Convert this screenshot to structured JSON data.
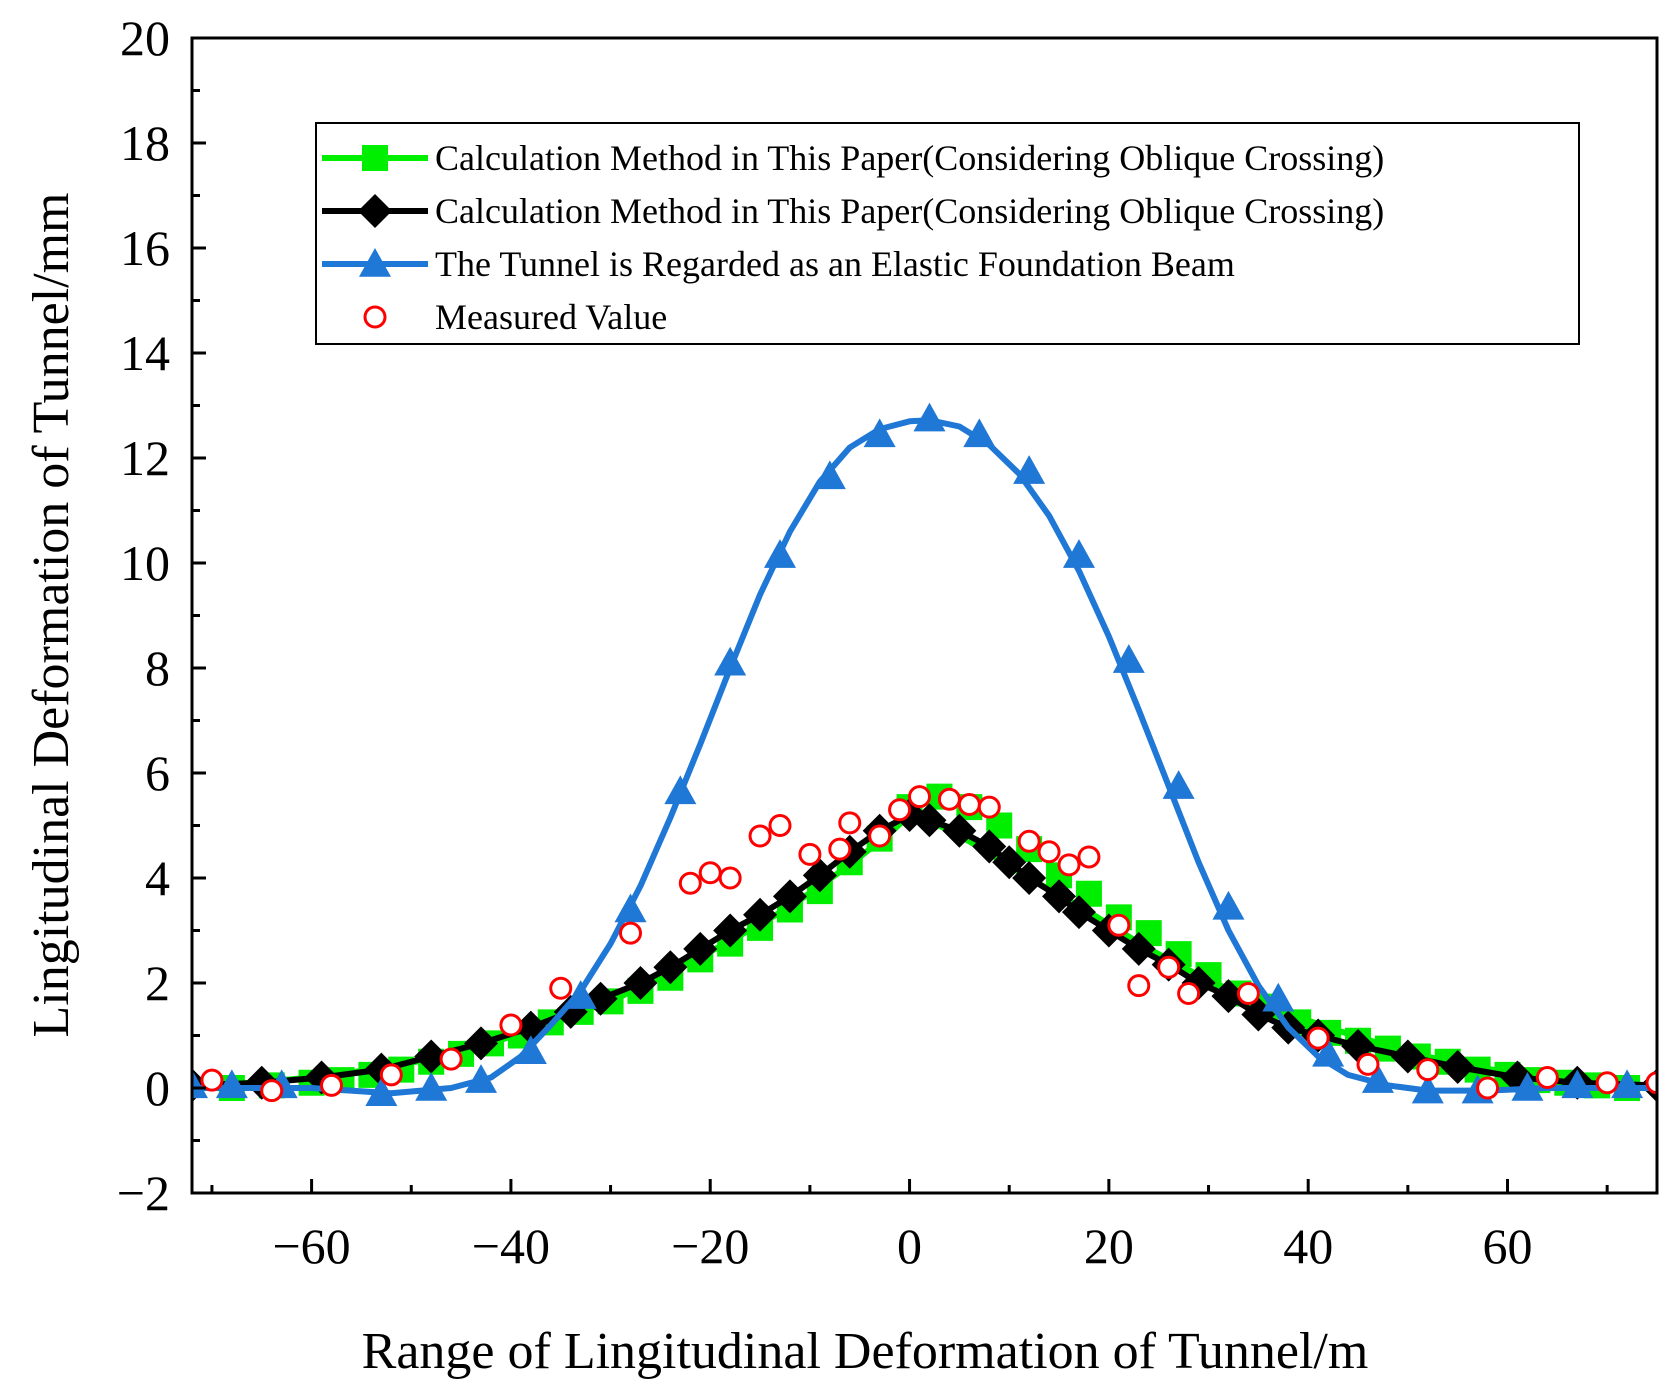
{
  "chart_data": {
    "type": "line",
    "title": "",
    "xlabel": "Range of Lingitudinal Deformation of Tunnel/m",
    "ylabel": "Lingitudinal Deformation of Tunnel/mm",
    "xlim": [
      -72,
      75
    ],
    "ylim": [
      -2,
      20
    ],
    "xticks": [
      -60,
      -40,
      -20,
      0,
      20,
      40,
      60
    ],
    "xtick_labels": [
      "−60",
      "−40",
      "−20",
      "0",
      "20",
      "40",
      "60"
    ],
    "yticks": [
      -2,
      0,
      2,
      4,
      6,
      8,
      10,
      12,
      14,
      16,
      18,
      20
    ],
    "ytick_labels": [
      "−2",
      "0",
      "2",
      "4",
      "6",
      "8",
      "10",
      "12",
      "14",
      "16",
      "18",
      "20"
    ],
    "legend_position": "top-right",
    "series": [
      {
        "name": "Calculation Method in This Paper(Considering Oblique Crossing)",
        "color": "#00ee00",
        "marker": "square",
        "points": [
          [
            -68,
            0.0
          ],
          [
            -64,
            0.05
          ],
          [
            -60,
            0.1
          ],
          [
            -57,
            0.15
          ],
          [
            -54,
            0.25
          ],
          [
            -51,
            0.35
          ],
          [
            -48,
            0.5
          ],
          [
            -45,
            0.65
          ],
          [
            -42,
            0.85
          ],
          [
            -39,
            1.0
          ],
          [
            -36,
            1.25
          ],
          [
            -33,
            1.45
          ],
          [
            -30,
            1.65
          ],
          [
            -27,
            1.85
          ],
          [
            -24,
            2.1
          ],
          [
            -21,
            2.45
          ],
          [
            -18,
            2.75
          ],
          [
            -15,
            3.05
          ],
          [
            -12,
            3.4
          ],
          [
            -9,
            3.75
          ],
          [
            -6,
            4.3
          ],
          [
            -3,
            4.75
          ],
          [
            0,
            5.35
          ],
          [
            3,
            5.55
          ],
          [
            6,
            5.35
          ],
          [
            9,
            5.0
          ],
          [
            12,
            4.55
          ],
          [
            15,
            4.05
          ],
          [
            18,
            3.7
          ],
          [
            21,
            3.25
          ],
          [
            24,
            2.95
          ],
          [
            27,
            2.55
          ],
          [
            30,
            2.15
          ],
          [
            33,
            1.8
          ],
          [
            36,
            1.55
          ],
          [
            39,
            1.25
          ],
          [
            42,
            1.05
          ],
          [
            45,
            0.9
          ],
          [
            48,
            0.75
          ],
          [
            51,
            0.6
          ],
          [
            54,
            0.5
          ],
          [
            57,
            0.35
          ],
          [
            60,
            0.25
          ],
          [
            63,
            0.15
          ],
          [
            66,
            0.1
          ],
          [
            69,
            0.05
          ],
          [
            72,
            0.0
          ]
        ],
        "line_points": [
          [
            -72,
            0.05
          ],
          [
            -66,
            0.1
          ],
          [
            -60,
            0.2
          ],
          [
            -54,
            0.35
          ],
          [
            -48,
            0.55
          ],
          [
            -42,
            0.85
          ],
          [
            -36,
            1.25
          ],
          [
            -30,
            1.65
          ],
          [
            -24,
            2.2
          ],
          [
            -18,
            2.8
          ],
          [
            -12,
            3.45
          ],
          [
            -6,
            4.25
          ],
          [
            -2,
            4.85
          ],
          [
            0,
            5.2
          ],
          [
            2,
            5.1
          ],
          [
            6,
            4.7
          ],
          [
            12,
            4.0
          ],
          [
            18,
            3.35
          ],
          [
            24,
            2.65
          ],
          [
            30,
            2.05
          ],
          [
            36,
            1.55
          ],
          [
            42,
            1.15
          ],
          [
            48,
            0.8
          ],
          [
            54,
            0.5
          ],
          [
            60,
            0.3
          ],
          [
            66,
            0.15
          ],
          [
            75,
            0.0
          ]
        ]
      },
      {
        "name": "Calculation Method in This Paper(Considering Oblique Crossing)",
        "color": "#000000",
        "marker": "diamond",
        "points": [
          [
            -72,
            0.05
          ],
          [
            -65,
            0.1
          ],
          [
            -59,
            0.2
          ],
          [
            -53,
            0.35
          ],
          [
            -48,
            0.6
          ],
          [
            -43,
            0.85
          ],
          [
            -38,
            1.15
          ],
          [
            -34,
            1.45
          ],
          [
            -31,
            1.7
          ],
          [
            -27,
            2.0
          ],
          [
            -24,
            2.3
          ],
          [
            -21,
            2.65
          ],
          [
            -18,
            3.0
          ],
          [
            -15,
            3.3
          ],
          [
            -12,
            3.65
          ],
          [
            -9,
            4.05
          ],
          [
            -6,
            4.5
          ],
          [
            -3,
            4.9
          ],
          [
            0,
            5.2
          ],
          [
            2,
            5.1
          ],
          [
            5,
            4.9
          ],
          [
            8,
            4.6
          ],
          [
            10,
            4.3
          ],
          [
            12,
            4.0
          ],
          [
            15,
            3.65
          ],
          [
            17,
            3.35
          ],
          [
            20,
            3.0
          ],
          [
            23,
            2.65
          ],
          [
            26,
            2.35
          ],
          [
            29,
            2.0
          ],
          [
            32,
            1.75
          ],
          [
            35,
            1.4
          ],
          [
            38,
            1.15
          ],
          [
            41,
            1.0
          ],
          [
            45,
            0.8
          ],
          [
            50,
            0.6
          ],
          [
            55,
            0.4
          ],
          [
            61,
            0.2
          ],
          [
            67,
            0.1
          ],
          [
            75,
            0.05
          ]
        ]
      },
      {
        "name": "The Tunnel is Regarded as an Elastic Foundation Beam",
        "color": "#1f77d6",
        "marker": "triangle",
        "points": [
          [
            -72,
            0.05
          ],
          [
            -68,
            0.05
          ],
          [
            -63,
            0.05
          ],
          [
            -53,
            -0.1
          ],
          [
            -48,
            0.0
          ],
          [
            -43,
            0.15
          ],
          [
            -38,
            0.7
          ],
          [
            -33,
            1.75
          ],
          [
            -28,
            3.4
          ],
          [
            -23,
            5.65
          ],
          [
            -18,
            8.1
          ],
          [
            -13,
            10.15
          ],
          [
            -8,
            11.65
          ],
          [
            -3,
            12.45
          ],
          [
            2,
            12.75
          ],
          [
            7,
            12.45
          ],
          [
            12,
            11.75
          ],
          [
            17,
            10.15
          ],
          [
            22,
            8.15
          ],
          [
            27,
            5.75
          ],
          [
            32,
            3.45
          ],
          [
            37,
            1.7
          ],
          [
            42,
            0.65
          ],
          [
            47,
            0.15
          ],
          [
            52,
            -0.05
          ],
          [
            57,
            -0.05
          ],
          [
            62,
            0.0
          ],
          [
            67,
            0.05
          ],
          [
            72,
            0.05
          ]
        ],
        "line_points": [
          [
            -72,
            0.0
          ],
          [
            -60,
            0.0
          ],
          [
            -52,
            -0.1
          ],
          [
            -46,
            0.0
          ],
          [
            -42,
            0.2
          ],
          [
            -39,
            0.6
          ],
          [
            -36,
            1.2
          ],
          [
            -33,
            1.85
          ],
          [
            -30,
            2.75
          ],
          [
            -27,
            3.85
          ],
          [
            -24,
            5.15
          ],
          [
            -21,
            6.55
          ],
          [
            -18,
            8.0
          ],
          [
            -15,
            9.4
          ],
          [
            -12,
            10.6
          ],
          [
            -9,
            11.55
          ],
          [
            -6,
            12.2
          ],
          [
            -3,
            12.55
          ],
          [
            0,
            12.7
          ],
          [
            2,
            12.72
          ],
          [
            5,
            12.6
          ],
          [
            8,
            12.25
          ],
          [
            11,
            11.7
          ],
          [
            14,
            10.9
          ],
          [
            17,
            9.85
          ],
          [
            20,
            8.6
          ],
          [
            23,
            7.2
          ],
          [
            26,
            5.75
          ],
          [
            29,
            4.3
          ],
          [
            32,
            3.0
          ],
          [
            35,
            1.95
          ],
          [
            38,
            1.15
          ],
          [
            41,
            0.6
          ],
          [
            44,
            0.25
          ],
          [
            48,
            0.05
          ],
          [
            52,
            -0.05
          ],
          [
            58,
            -0.05
          ],
          [
            64,
            0.0
          ],
          [
            75,
            0.0
          ]
        ]
      },
      {
        "name": "Measured Value",
        "color": "#ff0000",
        "marker": "circle-open",
        "points": [
          [
            -70,
            0.15
          ],
          [
            -64,
            -0.05
          ],
          [
            -58,
            0.05
          ],
          [
            -52,
            0.25
          ],
          [
            -46,
            0.55
          ],
          [
            -40,
            1.2
          ],
          [
            -35,
            1.9
          ],
          [
            -28,
            2.95
          ],
          [
            -22,
            3.9
          ],
          [
            -20,
            4.1
          ],
          [
            -18,
            4.0
          ],
          [
            -15,
            4.8
          ],
          [
            -13,
            5.0
          ],
          [
            -10,
            4.45
          ],
          [
            -7,
            4.55
          ],
          [
            -6,
            5.05
          ],
          [
            -3,
            4.8
          ],
          [
            -1,
            5.3
          ],
          [
            1,
            5.55
          ],
          [
            4,
            5.5
          ],
          [
            6,
            5.4
          ],
          [
            8,
            5.35
          ],
          [
            12,
            4.7
          ],
          [
            14,
            4.5
          ],
          [
            16,
            4.25
          ],
          [
            18,
            4.4
          ],
          [
            21,
            3.1
          ],
          [
            23,
            1.95
          ],
          [
            26,
            2.3
          ],
          [
            28,
            1.8
          ],
          [
            34,
            1.8
          ],
          [
            41,
            0.95
          ],
          [
            46,
            0.45
          ],
          [
            52,
            0.35
          ],
          [
            58,
            0.0
          ],
          [
            64,
            0.2
          ],
          [
            70,
            0.1
          ],
          [
            75,
            0.1
          ]
        ]
      }
    ]
  }
}
